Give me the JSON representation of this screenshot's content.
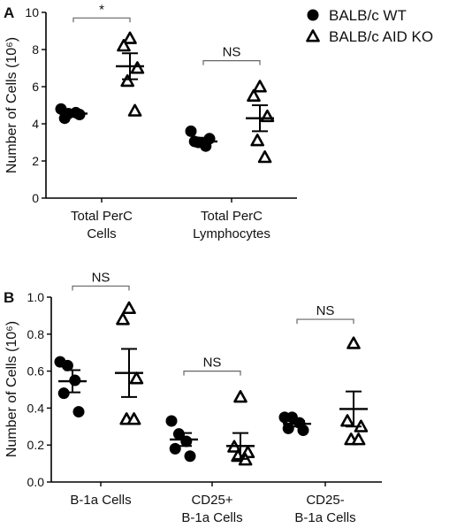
{
  "legend": {
    "placement": "top-right",
    "items": [
      {
        "label": "BALB/c WT",
        "marker": "filled-circle"
      },
      {
        "label": "BALB/c AID KO",
        "marker": "open-triangle"
      }
    ]
  },
  "chart_data": [
    {
      "type": "scatter",
      "panel_label": "A",
      "ylabel": "Number of Cells (10⁶)",
      "ylim": [
        0,
        10
      ],
      "yticks": [
        "0",
        "2",
        "4",
        "6",
        "8",
        "10"
      ],
      "categories": [
        {
          "lines": [
            "Total PerC",
            "Cells"
          ]
        },
        {
          "lines": [
            "Total PerC",
            "Lymphocytes"
          ]
        }
      ],
      "series": [
        {
          "name": "BALB/c WT",
          "marker": "filled-circle",
          "color": "#000000",
          "points": [
            [
              4.8,
              4.55,
              4.6,
              4.3,
              4.5
            ],
            [
              3.6,
              3.0,
              2.8,
              3.05,
              3.2
            ]
          ],
          "mean": [
            4.55,
            3.05
          ],
          "sem": [
            0.15,
            0.2
          ]
        },
        {
          "name": "BALB/c AID KO",
          "marker": "open-triangle",
          "color": "#000000",
          "points": [
            [
              8.6,
              8.2,
              7.0,
              6.3,
              4.7
            ],
            [
              6.0,
              5.5,
              4.4,
              3.1,
              2.2
            ]
          ],
          "mean": [
            7.1,
            4.3
          ],
          "sem": [
            0.7,
            0.7
          ]
        }
      ],
      "annotations": [
        {
          "text": "*",
          "category": 0,
          "y": 9.7
        },
        {
          "text": "NS",
          "category": 1,
          "y": 7.4
        }
      ],
      "grid": false
    },
    {
      "type": "scatter",
      "panel_label": "B",
      "ylabel": "Number of Cells (10⁶)",
      "ylim": [
        0,
        1.0
      ],
      "yticks": [
        "0.0",
        "0.2",
        "0.4",
        "0.6",
        "0.8",
        "1.0"
      ],
      "categories": [
        {
          "lines": [
            "B-1a Cells"
          ]
        },
        {
          "lines": [
            "CD25+",
            "B-1a Cells"
          ]
        },
        {
          "lines": [
            "CD25-",
            "B-1a Cells"
          ]
        }
      ],
      "series": [
        {
          "name": "BALB/c WT",
          "marker": "filled-circle",
          "color": "#000000",
          "points": [
            [
              0.65,
              0.63,
              0.55,
              0.48,
              0.38
            ],
            [
              0.33,
              0.26,
              0.22,
              0.18,
              0.14
            ],
            [
              0.35,
              0.35,
              0.32,
              0.29,
              0.28
            ]
          ],
          "mean": [
            0.545,
            0.23,
            0.315
          ],
          "sem": [
            0.06,
            0.035,
            0.015
          ]
        },
        {
          "name": "BALB/c AID KO",
          "marker": "open-triangle",
          "color": "#000000",
          "points": [
            [
              0.94,
              0.88,
              0.56,
              0.34,
              0.34
            ],
            [
              0.46,
              0.19,
              0.16,
              0.14,
              0.12
            ],
            [
              0.75,
              0.33,
              0.3,
              0.23,
              0.23
            ]
          ],
          "mean": [
            0.59,
            0.195,
            0.395
          ],
          "sem": [
            0.13,
            0.07,
            0.095
          ]
        }
      ],
      "annotations": [
        {
          "text": "NS",
          "category": 0,
          "y": 1.06
        },
        {
          "text": "NS",
          "category": 1,
          "y": 0.6
        },
        {
          "text": "NS",
          "category": 2,
          "y": 0.88
        }
      ],
      "grid": false
    }
  ]
}
